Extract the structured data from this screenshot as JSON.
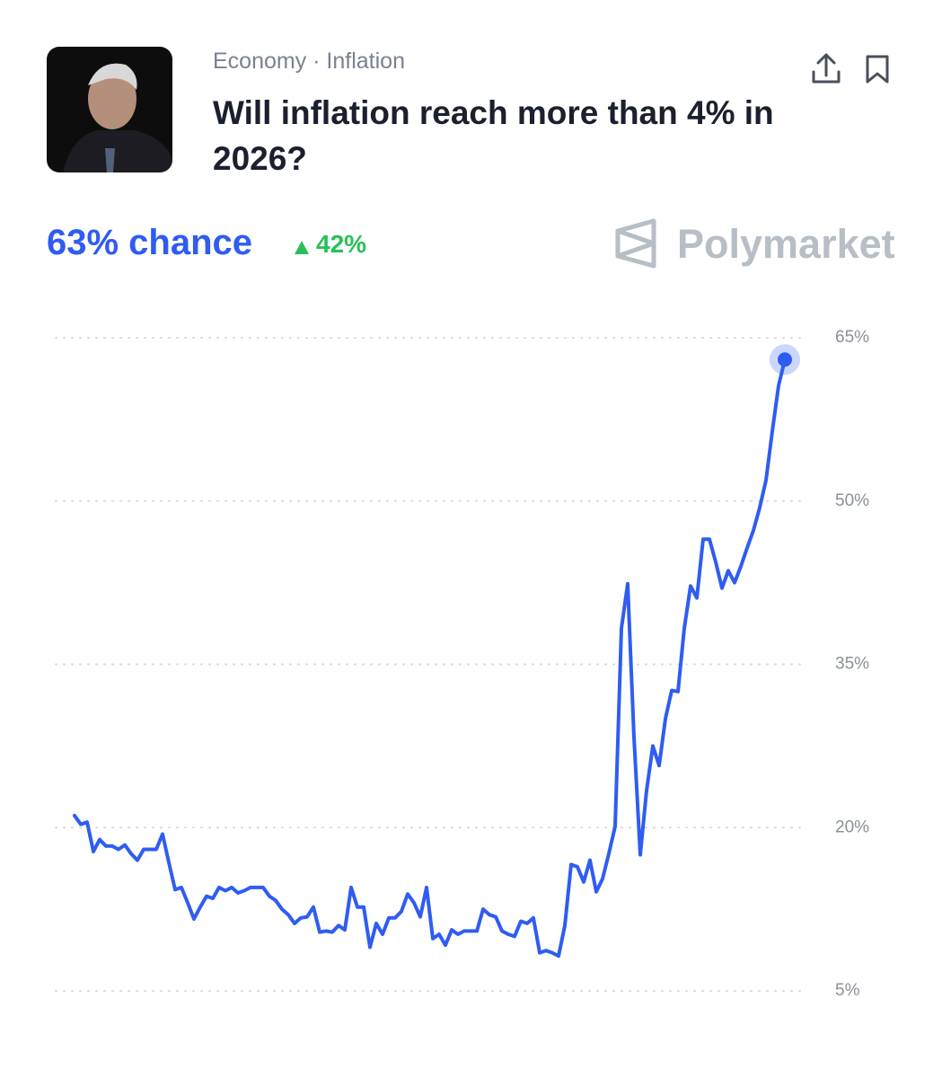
{
  "header": {
    "category": "Economy · Inflation",
    "title": "Will inflation reach more than 4% in 2026?",
    "chance": "63% chance",
    "change": "42%",
    "brand": "Polymarket"
  },
  "chart_data": {
    "type": "line",
    "color": "#2f5cf2",
    "values": [
      21.1,
      20.3,
      20.5,
      17.8,
      18.9,
      18.3,
      18.3,
      18.0,
      18.4,
      17.6,
      17.0,
      18.0,
      18.0,
      18.0,
      19.4,
      16.8,
      14.3,
      14.5,
      13.1,
      11.6,
      12.7,
      13.7,
      13.5,
      14.5,
      14.2,
      14.5,
      14.0,
      14.2,
      14.5,
      14.5,
      14.5,
      13.7,
      13.3,
      12.5,
      12.0,
      11.2,
      11.7,
      11.8,
      12.7,
      10.4,
      10.5,
      10.4,
      11.0,
      10.6,
      14.5,
      12.7,
      12.7,
      9.0,
      11.2,
      10.2,
      11.7,
      11.7,
      12.3,
      13.9,
      13.1,
      11.8,
      14.5,
      9.8,
      10.2,
      9.2,
      10.6,
      10.2,
      10.5,
      10.5,
      10.5,
      12.5,
      12.0,
      11.8,
      10.5,
      10.2,
      10.0,
      11.4,
      11.2,
      11.7,
      8.5,
      8.7,
      8.5,
      8.2,
      11.0,
      16.6,
      16.4,
      15.0,
      17.0,
      14.1,
      15.3,
      17.6,
      20.1,
      38.3,
      42.4,
      28.3,
      17.5,
      23.4,
      27.5,
      25.7,
      30.0,
      32.6,
      32.5,
      38.3,
      42.2,
      41.1,
      46.5,
      46.5,
      44.4,
      42.0,
      43.6,
      42.5,
      44.0,
      45.7,
      47.3,
      49.4,
      51.9,
      56.4,
      60.6,
      63
    ],
    "ylim": [
      5,
      65
    ],
    "yticks": [
      {
        "value": 5,
        "label": "5%"
      },
      {
        "value": 20,
        "label": "20%"
      },
      {
        "value": 35,
        "label": "35%"
      },
      {
        "value": 50,
        "label": "50%"
      },
      {
        "value": 65,
        "label": "65%"
      }
    ],
    "grid": true
  }
}
